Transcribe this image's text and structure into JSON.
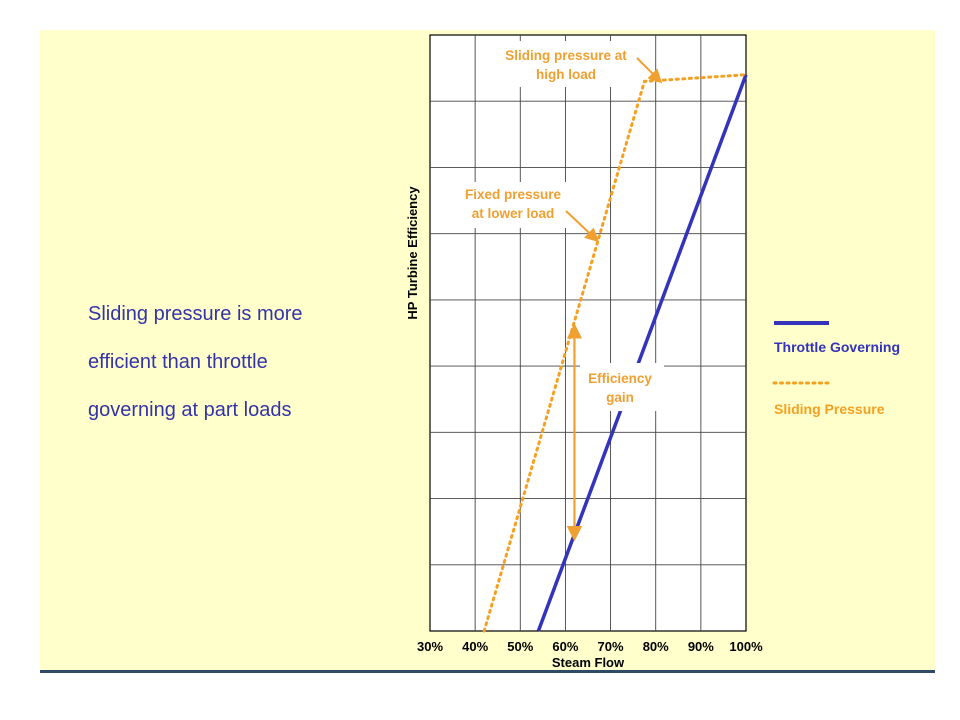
{
  "slide": {
    "caption_lines": [
      "Sliding pressure is more",
      "efficient than throttle",
      "governing at part loads"
    ]
  },
  "colors": {
    "slide_bg": "#ffffcc",
    "throttle": "#3333bb",
    "sliding": "#f5a020",
    "annotation": "#f0a030",
    "caption": "#3333aa",
    "bottom_rule": "#2e4a66"
  },
  "chart_data": {
    "type": "line",
    "xlabel": "Steam Flow",
    "ylabel": "HP Turbine Efficiency",
    "x_ticks": [
      "30%",
      "40%",
      "50%",
      "60%",
      "70%",
      "80%",
      "90%",
      "100%"
    ],
    "xlim": [
      30,
      100
    ],
    "ylim": [
      0,
      9
    ],
    "y_tick_labels": false,
    "grid": true,
    "legend_placement": "right",
    "series": [
      {
        "name": "Throttle Governing",
        "style": "solid",
        "x": [
          54,
          100
        ],
        "y": [
          0,
          8.4
        ]
      },
      {
        "name": "Sliding Pressure",
        "style": "dotted",
        "x": [
          42,
          77.5,
          100
        ],
        "y": [
          0,
          8.3,
          8.4
        ]
      }
    ],
    "annotations": [
      {
        "id": "sliding_high",
        "lines": [
          "Sliding pressure at",
          "high load"
        ],
        "target": [
          81,
          8.3
        ]
      },
      {
        "id": "fixed_lower",
        "lines": [
          "Fixed pressure",
          "at lower load"
        ],
        "target": [
          67,
          5.9
        ]
      },
      {
        "id": "gain",
        "lines": [
          "Efficiency",
          "gain"
        ],
        "arrow_x": 62,
        "arrow_y": [
          1.4,
          4.6
        ]
      }
    ]
  }
}
